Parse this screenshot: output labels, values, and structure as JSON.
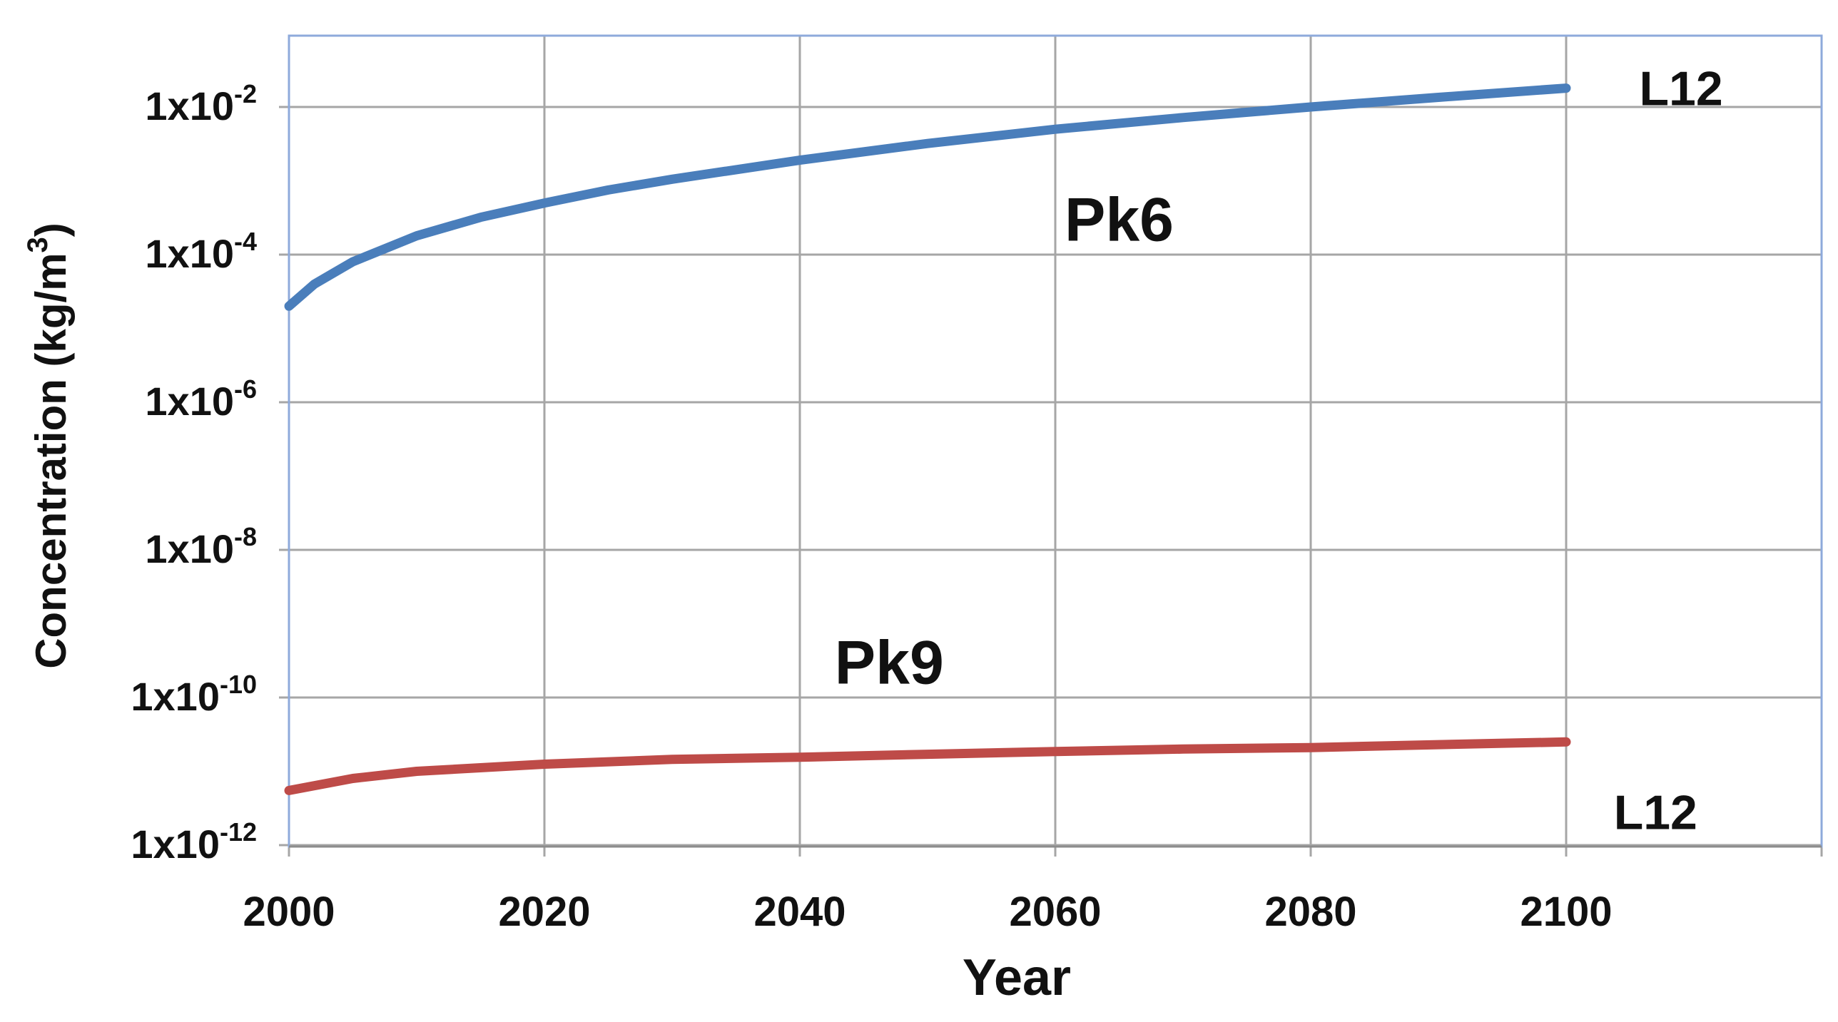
{
  "chart_data": {
    "type": "line",
    "xlabel": "Year",
    "ylabel_main": "Concentration (kg/m",
    "ylabel_sup": "3",
    "ylabel_end": ")",
    "x_scale": "linear",
    "y_scale": "log",
    "xlim": [
      2000,
      2120
    ],
    "ylim": [
      1e-12,
      0.1
    ],
    "x_ticks": [
      {
        "value": 2000,
        "label": "2000"
      },
      {
        "value": 2020,
        "label": "2020"
      },
      {
        "value": 2040,
        "label": "2040"
      },
      {
        "value": 2060,
        "label": "2060"
      },
      {
        "value": 2080,
        "label": "2080"
      },
      {
        "value": 2100,
        "label": "2100"
      }
    ],
    "x_gridlines": [
      2000,
      2020,
      2040,
      2060,
      2080,
      2100
    ],
    "y_ticks": [
      {
        "value": 0.01,
        "base": "1x10",
        "exp": "-2"
      },
      {
        "value": 0.0001,
        "base": "1x10",
        "exp": "-4"
      },
      {
        "value": 1e-06,
        "base": "1x10",
        "exp": "-6"
      },
      {
        "value": 1e-08,
        "base": "1x10",
        "exp": "-8"
      },
      {
        "value": 1e-10,
        "base": "1x10",
        "exp": "-10"
      },
      {
        "value": 1e-12,
        "base": "1x10",
        "exp": "-12"
      }
    ],
    "grid": true,
    "colors": {
      "background": "#ffffff",
      "grid": "#a6a6a6",
      "frame": "#8eaadb"
    },
    "series": [
      {
        "color": "#4a7ebb",
        "x": [
          2000,
          2002,
          2005,
          2010,
          2015,
          2020,
          2025,
          2030,
          2040,
          2050,
          2060,
          2070,
          2080,
          2090,
          2100
        ],
        "y": [
          2e-05,
          4e-05,
          8e-05,
          0.00018,
          0.00032,
          0.0005,
          0.00075,
          0.00105,
          0.0019,
          0.0032,
          0.005,
          0.0072,
          0.01,
          0.0135,
          0.018
        ]
      },
      {
        "color": "#be4b48",
        "x": [
          2000,
          2005,
          2010,
          2020,
          2030,
          2040,
          2050,
          2060,
          2070,
          2080,
          2090,
          2100
        ],
        "y": [
          5.5e-12,
          8e-12,
          1e-11,
          1.25e-11,
          1.45e-11,
          1.55e-11,
          1.7e-11,
          1.85e-11,
          2e-11,
          2.1e-11,
          2.3e-11,
          2.5e-11
        ]
      }
    ],
    "annotations": [
      {
        "text": "Pk6",
        "x": 2065,
        "y": 0.0003
      },
      {
        "text": "Pk9",
        "x": 2047,
        "y": 3e-10
      },
      {
        "text": "L12",
        "x": 2109,
        "y": 0.018
      },
      {
        "text": "L12",
        "x": 2107,
        "y": 2.8e-12
      }
    ]
  }
}
